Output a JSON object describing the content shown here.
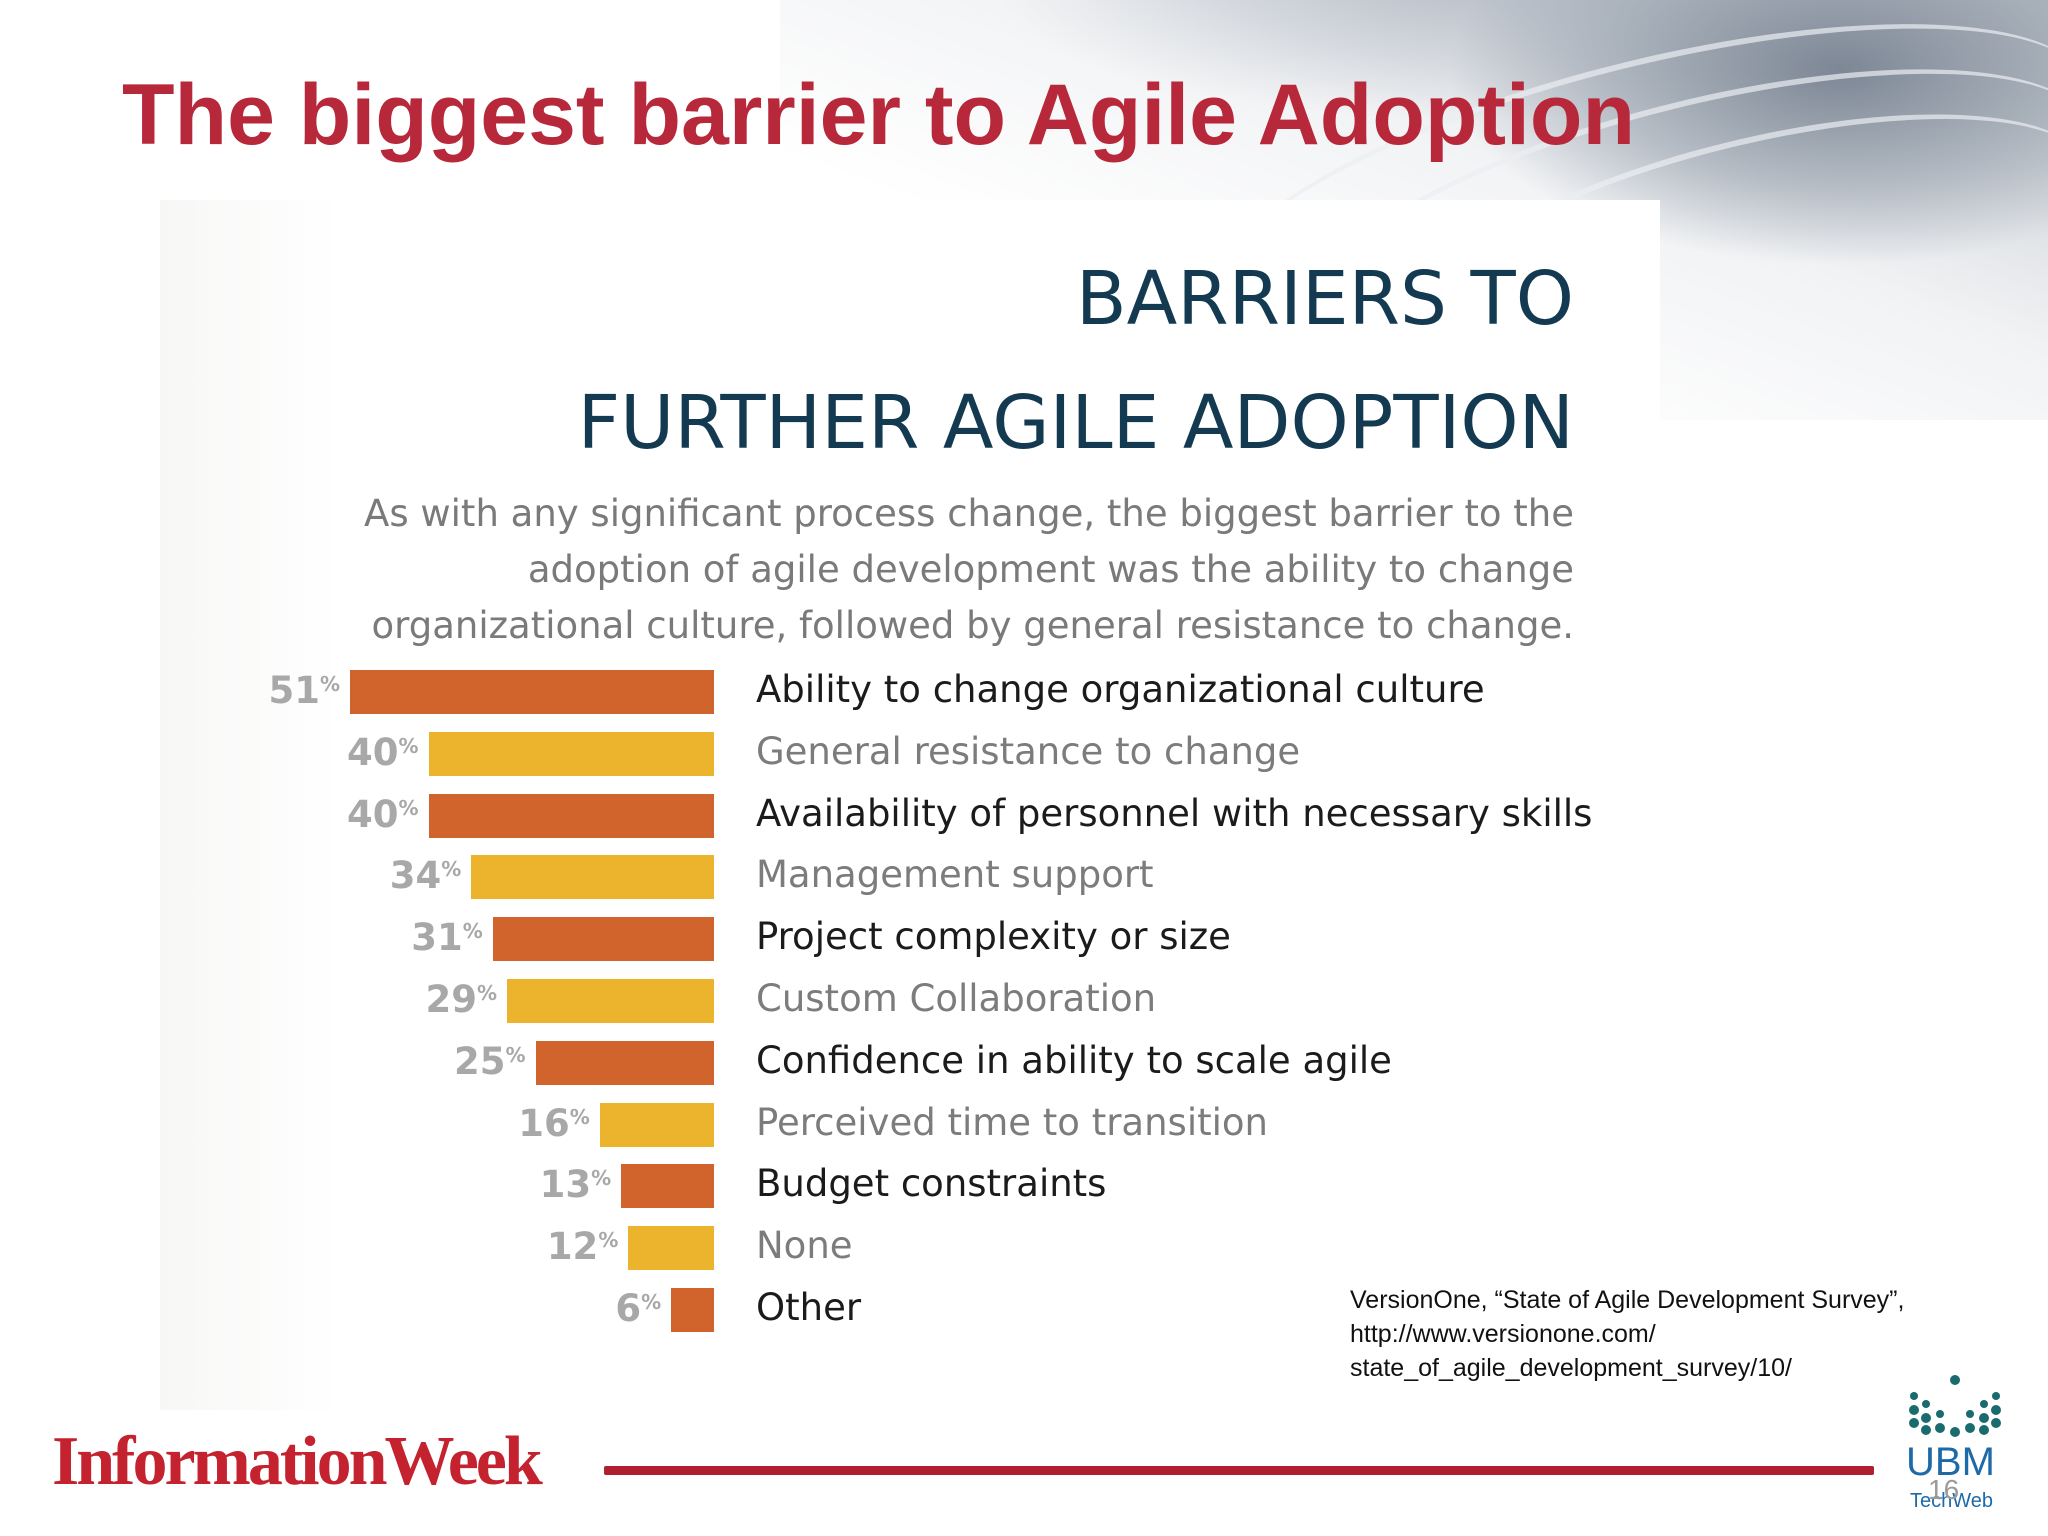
{
  "slide": {
    "title": "The biggest barrier to Agile Adoption",
    "source_line1": "VersionOne, “State of Agile Development Survey”,",
    "source_line2": "http://www.versionone.com/",
    "source_line3": "state_of_agile_development_survey/10/",
    "footer_brand": "InformationWeek",
    "ubm_name": "UBM",
    "ubm_sub": "TechWeb",
    "page_number": "16"
  },
  "colors": {
    "title": "#b7283a",
    "bar_orange": "#d0642c",
    "bar_yellow": "#ecb42c",
    "heading": "#143a52",
    "label_dark": "#1b1b1b",
    "label_gray": "#7c7c7c",
    "footer_red": "#c4222f"
  },
  "chart_data": {
    "type": "bar",
    "orientation": "horizontal",
    "title_line1": "BARRIERS TO",
    "title_line2": "FURTHER AGILE ADOPTION",
    "subtitle": "As with any significant process change, the biggest barrier to the adoption of agile development was the ability to change organizational culture, followed by general resistance to change.",
    "unit": "%",
    "categories": [
      "Ability to change organizational culture",
      "General resistance to change",
      "Availability of personnel with necessary skills",
      "Management support",
      "Project complexity or size",
      "Custom Collaboration",
      "Confidence in ability to scale agile",
      "Perceived time to transition",
      "Budget constraints",
      "None",
      "Other"
    ],
    "values": [
      51,
      40,
      40,
      34,
      31,
      29,
      25,
      16,
      13,
      12,
      6
    ],
    "value_labels": [
      "51",
      "40",
      "40",
      "34",
      "31",
      "29",
      "25",
      "16",
      "13",
      "12",
      "6"
    ],
    "bar_colors": [
      "orange",
      "yellow",
      "orange",
      "yellow",
      "orange",
      "yellow",
      "orange",
      "yellow",
      "orange",
      "yellow",
      "orange"
    ],
    "xlim": [
      0,
      51
    ],
    "grid": false,
    "legend": "none"
  }
}
